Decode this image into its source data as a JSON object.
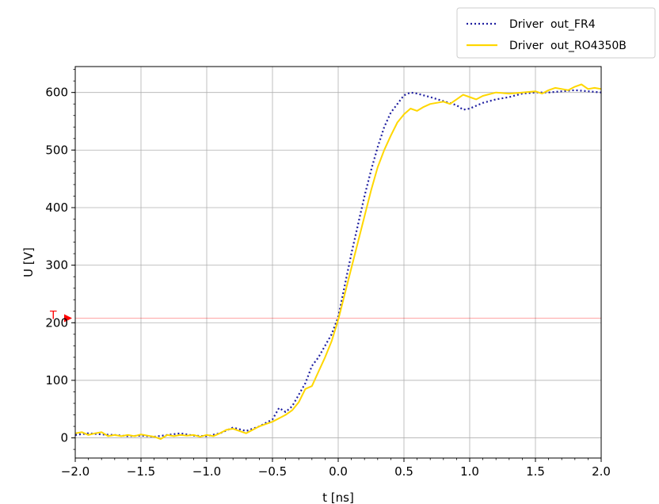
{
  "chart_data": {
    "type": "line",
    "title": "",
    "xlabel": "t [ns]",
    "ylabel": "U [V]",
    "xlim": [
      -2.0,
      2.0
    ],
    "ylim": [
      -35,
      645
    ],
    "grid": true,
    "legend_position": "top-right, above plot",
    "x_ticks": [
      -2.0,
      -1.5,
      -1.0,
      -0.5,
      0.0,
      0.5,
      1.0,
      1.5,
      2.0
    ],
    "x_tick_labels": [
      "−2.0",
      "−1.5",
      "−1.0",
      "−0.5",
      "0.0",
      "0.5",
      "1.0",
      "1.5",
      "2.0"
    ],
    "y_ticks": [
      0,
      100,
      200,
      300,
      400,
      500,
      600
    ],
    "y_tick_labels": [
      "0",
      "100",
      "200",
      "300",
      "400",
      "500",
      "600"
    ],
    "threshold": {
      "label": "T",
      "value": 208,
      "color": "#ff0000"
    },
    "series": [
      {
        "name": "Driver  out_FR4",
        "color": "#1f1fa0",
        "style": "dotted",
        "points": [
          [
            -2.0,
            5
          ],
          [
            -1.9,
            8
          ],
          [
            -1.8,
            6
          ],
          [
            -1.7,
            5
          ],
          [
            -1.6,
            3
          ],
          [
            -1.5,
            4
          ],
          [
            -1.4,
            2
          ],
          [
            -1.3,
            5
          ],
          [
            -1.2,
            8
          ],
          [
            -1.1,
            4
          ],
          [
            -1.0,
            3
          ],
          [
            -0.9,
            8
          ],
          [
            -0.8,
            18
          ],
          [
            -0.7,
            12
          ],
          [
            -0.6,
            20
          ],
          [
            -0.5,
            32
          ],
          [
            -0.45,
            52
          ],
          [
            -0.4,
            45
          ],
          [
            -0.35,
            55
          ],
          [
            -0.3,
            75
          ],
          [
            -0.25,
            95
          ],
          [
            -0.2,
            125
          ],
          [
            -0.15,
            140
          ],
          [
            -0.1,
            160
          ],
          [
            -0.05,
            180
          ],
          [
            0.0,
            210
          ],
          [
            0.05,
            265
          ],
          [
            0.1,
            320
          ],
          [
            0.15,
            370
          ],
          [
            0.2,
            420
          ],
          [
            0.25,
            465
          ],
          [
            0.3,
            505
          ],
          [
            0.35,
            540
          ],
          [
            0.4,
            565
          ],
          [
            0.45,
            580
          ],
          [
            0.5,
            595
          ],
          [
            0.55,
            600
          ],
          [
            0.6,
            598
          ],
          [
            0.7,
            592
          ],
          [
            0.8,
            585
          ],
          [
            0.9,
            578
          ],
          [
            0.95,
            570
          ],
          [
            1.0,
            572
          ],
          [
            1.1,
            582
          ],
          [
            1.2,
            588
          ],
          [
            1.3,
            592
          ],
          [
            1.4,
            598
          ],
          [
            1.5,
            600
          ],
          [
            1.6,
            600
          ],
          [
            1.7,
            602
          ],
          [
            1.8,
            604
          ],
          [
            1.9,
            602
          ],
          [
            2.0,
            600
          ]
        ]
      },
      {
        "name": "Driver  out_RO4350B",
        "color": "#ffd700",
        "style": "solid",
        "points": [
          [
            -2.0,
            8
          ],
          [
            -1.95,
            10
          ],
          [
            -1.9,
            5
          ],
          [
            -1.85,
            8
          ],
          [
            -1.8,
            10
          ],
          [
            -1.75,
            3
          ],
          [
            -1.7,
            5
          ],
          [
            -1.65,
            3
          ],
          [
            -1.6,
            5
          ],
          [
            -1.55,
            3
          ],
          [
            -1.5,
            6
          ],
          [
            -1.45,
            4
          ],
          [
            -1.4,
            2
          ],
          [
            -1.35,
            -2
          ],
          [
            -1.3,
            5
          ],
          [
            -1.25,
            3
          ],
          [
            -1.2,
            5
          ],
          [
            -1.15,
            4
          ],
          [
            -1.1,
            5
          ],
          [
            -1.05,
            2
          ],
          [
            -1.0,
            5
          ],
          [
            -0.95,
            3
          ],
          [
            -0.9,
            8
          ],
          [
            -0.85,
            14
          ],
          [
            -0.8,
            16
          ],
          [
            -0.75,
            12
          ],
          [
            -0.7,
            8
          ],
          [
            -0.65,
            14
          ],
          [
            -0.6,
            20
          ],
          [
            -0.55,
            24
          ],
          [
            -0.5,
            28
          ],
          [
            -0.45,
            34
          ],
          [
            -0.4,
            40
          ],
          [
            -0.35,
            48
          ],
          [
            -0.3,
            62
          ],
          [
            -0.25,
            85
          ],
          [
            -0.2,
            90
          ],
          [
            -0.15,
            115
          ],
          [
            -0.1,
            140
          ],
          [
            -0.05,
            168
          ],
          [
            0.0,
            205
          ],
          [
            0.05,
            250
          ],
          [
            0.1,
            295
          ],
          [
            0.15,
            340
          ],
          [
            0.2,
            385
          ],
          [
            0.25,
            430
          ],
          [
            0.3,
            470
          ],
          [
            0.35,
            500
          ],
          [
            0.4,
            525
          ],
          [
            0.45,
            548
          ],
          [
            0.5,
            562
          ],
          [
            0.55,
            572
          ],
          [
            0.6,
            568
          ],
          [
            0.65,
            575
          ],
          [
            0.7,
            580
          ],
          [
            0.8,
            584
          ],
          [
            0.85,
            580
          ],
          [
            0.9,
            588
          ],
          [
            0.95,
            596
          ],
          [
            1.0,
            592
          ],
          [
            1.05,
            588
          ],
          [
            1.1,
            594
          ],
          [
            1.2,
            600
          ],
          [
            1.3,
            598
          ],
          [
            1.4,
            600
          ],
          [
            1.5,
            602
          ],
          [
            1.55,
            598
          ],
          [
            1.6,
            604
          ],
          [
            1.65,
            608
          ],
          [
            1.7,
            606
          ],
          [
            1.75,
            604
          ],
          [
            1.8,
            610
          ],
          [
            1.85,
            614
          ],
          [
            1.9,
            606
          ],
          [
            1.95,
            608
          ],
          [
            2.0,
            606
          ]
        ]
      }
    ]
  }
}
